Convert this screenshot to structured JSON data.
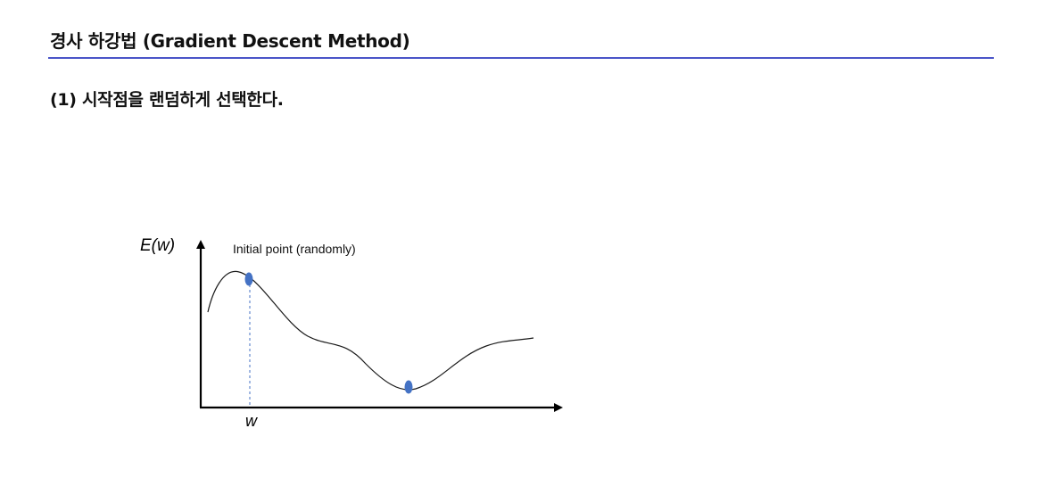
{
  "slide": {
    "title": "경사 하강법 (Gradient Descent Method)",
    "step": "(1) 시작점을 랜덤하게 선택한다."
  },
  "diagram": {
    "y_axis_label": "E(w)",
    "x_axis_label": "w",
    "annotation": "Initial point (randomly)",
    "curve_color": "#1a1a1a",
    "point_color": "#4472c4",
    "guide_color": "#4472c4",
    "rule_color": "#4a55c8"
  }
}
